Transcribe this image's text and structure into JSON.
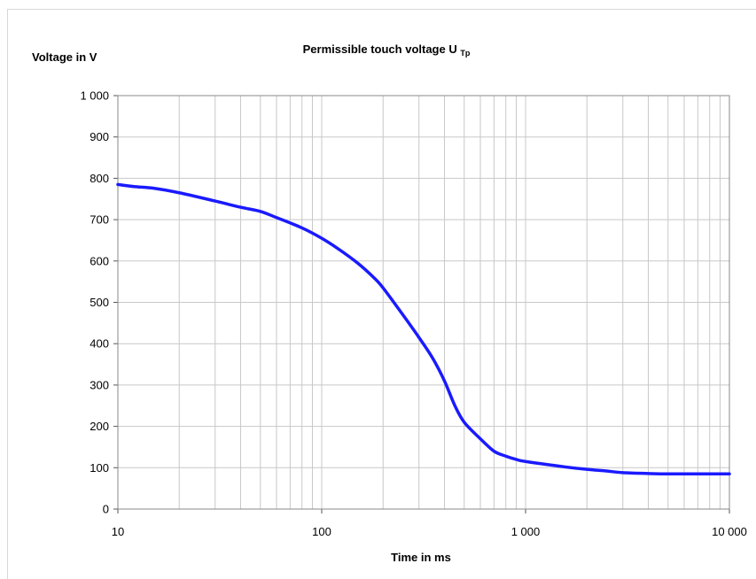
{
  "chart_data": {
    "type": "line",
    "title": "Permissible touch voltage U",
    "title_subscript": "Tp",
    "ylabel": "Voltage in V",
    "xlabel": "Time in ms",
    "xscale": "log",
    "xlim": [
      10,
      10000
    ],
    "ylim": [
      0,
      1000
    ],
    "grid": true,
    "x_ticks": [
      {
        "value": 10,
        "label": "10"
      },
      {
        "value": 100,
        "label": "100"
      },
      {
        "value": 1000,
        "label": "1 000"
      },
      {
        "value": 10000,
        "label": "10 000"
      }
    ],
    "y_ticks": [
      {
        "value": 0,
        "label": "0"
      },
      {
        "value": 100,
        "label": "100"
      },
      {
        "value": 200,
        "label": "200"
      },
      {
        "value": 300,
        "label": "300"
      },
      {
        "value": 400,
        "label": "400"
      },
      {
        "value": 500,
        "label": "500"
      },
      {
        "value": 600,
        "label": "600"
      },
      {
        "value": 700,
        "label": "700"
      },
      {
        "value": 800,
        "label": "800"
      },
      {
        "value": 900,
        "label": "900"
      },
      {
        "value": 1000,
        "label": "1 000"
      }
    ],
    "series": [
      {
        "color": "#1a1aff",
        "x": [
          10,
          12,
          15,
          20,
          30,
          40,
          50,
          60,
          80,
          100,
          120,
          150,
          180,
          200,
          250,
          300,
          350,
          400,
          450,
          500,
          600,
          700,
          800,
          900,
          1000,
          1500,
          2000,
          2500,
          3000,
          4000,
          5000,
          7000,
          10000
        ],
        "y": [
          785,
          780,
          776,
          765,
          745,
          730,
          720,
          705,
          680,
          655,
          630,
          595,
          560,
          535,
          470,
          415,
          365,
          310,
          250,
          210,
          170,
          140,
          128,
          120,
          115,
          103,
          96,
          92,
          88,
          86,
          85,
          85,
          85
        ]
      }
    ]
  }
}
